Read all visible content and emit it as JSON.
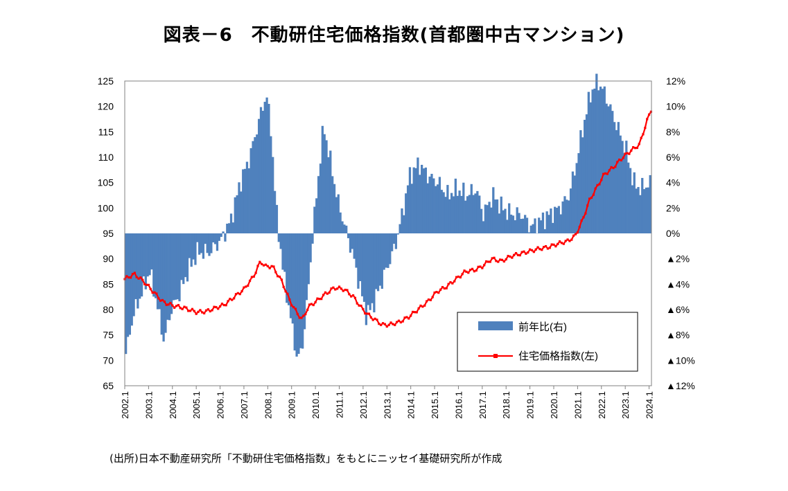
{
  "title": "図表－6　不動研住宅価格指数(首都圏中古マンション)",
  "source": "(出所)日本不動産研究所「不動研住宅価格指数」をもとにニッセイ基礎研究所が作成",
  "colors": {
    "bar": "#4f81bd",
    "line": "#ff0000"
  },
  "chart_data": {
    "type": "bar+line",
    "x_start": "2002.1",
    "x_end": "2024.1",
    "left_axis": {
      "ylim": [
        65,
        125
      ],
      "ticks": [
        "125",
        "120",
        "115",
        "110",
        "105",
        "100",
        "95",
        "90",
        "85",
        "80",
        "75",
        "70",
        "65"
      ]
    },
    "right_axis": {
      "ylim": [
        -12,
        12
      ],
      "ticks": [
        "12%",
        "10%",
        "8%",
        "6%",
        "4%",
        "2%",
        "0%",
        "▲2%",
        "▲4%",
        "▲6%",
        "▲8%",
        "▲10%",
        "▲12%"
      ]
    },
    "x_ticks": [
      "2002.1",
      "2003.1",
      "2004.1",
      "2005.1",
      "2006.1",
      "2007.1",
      "2008.1",
      "2009.1",
      "2010.1",
      "2011.1",
      "2012.1",
      "2013.1",
      "2014.1",
      "2015.1",
      "2016.1",
      "2017.1",
      "2018.1",
      "2019.1",
      "2020.1",
      "2021.1",
      "2022.1",
      "2023.1",
      "2024.1"
    ],
    "legend": {
      "placement": "lower-right",
      "items": [
        "前年比(右)",
        "住宅価格指数(左)"
      ]
    },
    "grid": false,
    "series": [
      {
        "name": "前年比(右)",
        "type": "bar",
        "axis": "right",
        "anchors": [
          [
            2002.0,
            -9.5
          ],
          [
            2002.3,
            -6.5
          ],
          [
            2002.7,
            -4.5
          ],
          [
            2003.0,
            -3.0
          ],
          [
            2003.3,
            -5.5
          ],
          [
            2003.6,
            -8.5
          ],
          [
            2003.9,
            -6.0
          ],
          [
            2004.2,
            -5.0
          ],
          [
            2004.6,
            -3.0
          ],
          [
            2005.0,
            -1.5
          ],
          [
            2005.5,
            -1.5
          ],
          [
            2006.0,
            -0.5
          ],
          [
            2006.4,
            1.0
          ],
          [
            2006.8,
            4.0
          ],
          [
            2007.2,
            6.0
          ],
          [
            2007.6,
            9.0
          ],
          [
            2007.9,
            11.0
          ],
          [
            2008.1,
            8.0
          ],
          [
            2008.3,
            2.0
          ],
          [
            2008.6,
            -3.0
          ],
          [
            2008.9,
            -6.5
          ],
          [
            2009.2,
            -10.0
          ],
          [
            2009.4,
            -9.0
          ],
          [
            2009.6,
            -5.5
          ],
          [
            2009.8,
            -1.0
          ],
          [
            2010.0,
            3.0
          ],
          [
            2010.3,
            8.5
          ],
          [
            2010.6,
            5.5
          ],
          [
            2010.9,
            2.5
          ],
          [
            2011.2,
            0.5
          ],
          [
            2011.5,
            -1.5
          ],
          [
            2011.8,
            -4.0
          ],
          [
            2012.1,
            -6.5
          ],
          [
            2012.4,
            -5.5
          ],
          [
            2012.7,
            -4.0
          ],
          [
            2013.0,
            -2.5
          ],
          [
            2013.3,
            -1.0
          ],
          [
            2013.6,
            1.5
          ],
          [
            2013.9,
            4.5
          ],
          [
            2014.3,
            5.5
          ],
          [
            2014.7,
            4.5
          ],
          [
            2015.1,
            4.0
          ],
          [
            2015.5,
            3.0
          ],
          [
            2015.9,
            3.5
          ],
          [
            2016.3,
            3.0
          ],
          [
            2016.7,
            3.5
          ],
          [
            2017.0,
            1.5
          ],
          [
            2017.4,
            3.0
          ],
          [
            2017.8,
            2.0
          ],
          [
            2018.2,
            1.5
          ],
          [
            2018.6,
            1.5
          ],
          [
            2019.0,
            0.5
          ],
          [
            2019.4,
            1.0
          ],
          [
            2019.8,
            1.5
          ],
          [
            2020.2,
            2.0
          ],
          [
            2020.6,
            3.0
          ],
          [
            2020.9,
            5.5
          ],
          [
            2021.2,
            8.5
          ],
          [
            2021.5,
            11.0
          ],
          [
            2021.8,
            12.0
          ],
          [
            2022.1,
            11.0
          ],
          [
            2022.4,
            9.5
          ],
          [
            2022.7,
            8.0
          ],
          [
            2023.0,
            6.5
          ],
          [
            2023.3,
            4.0
          ],
          [
            2023.6,
            3.5
          ],
          [
            2024.0,
            4.0
          ]
        ]
      },
      {
        "name": "住宅価格指数(左)",
        "type": "line",
        "axis": "left",
        "anchors": [
          [
            2002.0,
            86.0
          ],
          [
            2002.4,
            87.0
          ],
          [
            2002.8,
            85.5
          ],
          [
            2003.2,
            83.5
          ],
          [
            2003.6,
            81.5
          ],
          [
            2004.0,
            80.8
          ],
          [
            2004.5,
            80.3
          ],
          [
            2005.0,
            79.5
          ],
          [
            2005.4,
            79.6
          ],
          [
            2005.8,
            80.3
          ],
          [
            2006.2,
            81.0
          ],
          [
            2006.6,
            82.5
          ],
          [
            2007.0,
            84.0
          ],
          [
            2007.4,
            86.5
          ],
          [
            2007.7,
            89.5
          ],
          [
            2007.9,
            88.5
          ],
          [
            2008.2,
            88.5
          ],
          [
            2008.6,
            85.5
          ],
          [
            2008.9,
            82.0
          ],
          [
            2009.2,
            79.5
          ],
          [
            2009.45,
            78.0
          ],
          [
            2009.7,
            80.5
          ],
          [
            2010.0,
            81.5
          ],
          [
            2010.4,
            83.0
          ],
          [
            2010.8,
            84.3
          ],
          [
            2011.2,
            84.0
          ],
          [
            2011.6,
            82.5
          ],
          [
            2011.9,
            80.5
          ],
          [
            2012.2,
            79.0
          ],
          [
            2012.5,
            78.0
          ],
          [
            2012.8,
            77.0
          ],
          [
            2013.1,
            77.0
          ],
          [
            2013.5,
            77.5
          ],
          [
            2013.9,
            78.5
          ],
          [
            2014.3,
            80.0
          ],
          [
            2014.7,
            81.5
          ],
          [
            2015.1,
            83.5
          ],
          [
            2015.5,
            84.5
          ],
          [
            2015.9,
            86.0
          ],
          [
            2016.3,
            87.5
          ],
          [
            2016.7,
            87.8
          ],
          [
            2017.0,
            88.5
          ],
          [
            2017.4,
            90.0
          ],
          [
            2017.8,
            89.5
          ],
          [
            2018.2,
            90.5
          ],
          [
            2018.6,
            91.0
          ],
          [
            2019.0,
            91.5
          ],
          [
            2019.4,
            92.0
          ],
          [
            2019.8,
            92.3
          ],
          [
            2020.2,
            93.0
          ],
          [
            2020.6,
            93.5
          ],
          [
            2020.9,
            94.5
          ],
          [
            2021.2,
            97.5
          ],
          [
            2021.5,
            101.5
          ],
          [
            2021.8,
            104.0
          ],
          [
            2022.1,
            106.5
          ],
          [
            2022.5,
            108.0
          ],
          [
            2022.9,
            110.0
          ],
          [
            2023.3,
            111.5
          ],
          [
            2023.6,
            112.5
          ],
          [
            2023.9,
            117.0
          ],
          [
            2024.1,
            119.5
          ]
        ]
      }
    ]
  }
}
